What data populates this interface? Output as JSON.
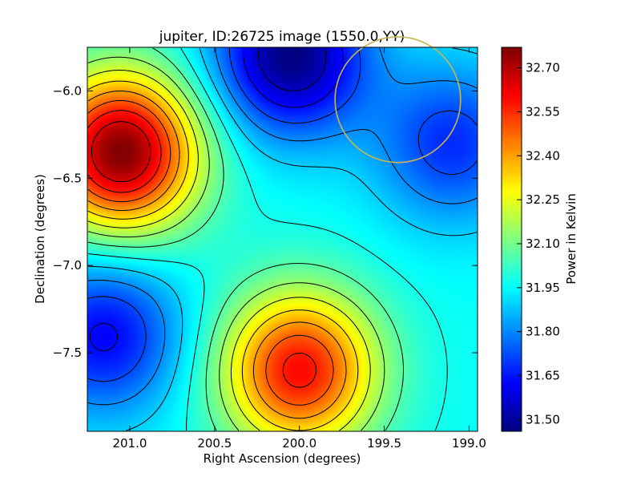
{
  "chart_data": {
    "type": "heatmap",
    "title": "jupiter, ID:26725 image (1550.0,YY)",
    "xlabel": "Right Ascension (degrees)",
    "ylabel": "Declination (degrees)",
    "colorbar_label": "Power in Kelvin",
    "colormap": "jet",
    "contours": true,
    "xlim": [
      201.25,
      198.95
    ],
    "ylim": [
      -7.95,
      -5.75
    ],
    "x_ticks": [
      201.0,
      200.5,
      200.0,
      199.5,
      199.0
    ],
    "x_tick_labels": [
      "201.0",
      "200.5",
      "200.0",
      "199.5",
      "199.0"
    ],
    "y_ticks": [
      -6.0,
      -6.5,
      -7.0,
      -7.5
    ],
    "y_tick_labels": [
      "−6.0",
      "−6.5",
      "−7.0",
      "−7.5"
    ],
    "clim": [
      31.46,
      32.77
    ],
    "colorbar_ticks": [
      31.5,
      31.65,
      31.8,
      31.95,
      32.1,
      32.25,
      32.4,
      32.55,
      32.7
    ],
    "colorbar_tick_labels": [
      "31.50",
      "31.65",
      "31.80",
      "31.95",
      "32.10",
      "32.25",
      "32.40",
      "32.55",
      "32.70"
    ],
    "features": [
      {
        "ra": 201.05,
        "dec": -6.35,
        "value": 32.77,
        "kind": "max"
      },
      {
        "ra": 200.0,
        "dec": -7.6,
        "value": 32.6,
        "kind": "max"
      },
      {
        "ra": 200.05,
        "dec": -5.8,
        "value": 31.46,
        "kind": "min"
      },
      {
        "ra": 201.15,
        "dec": -7.4,
        "value": 31.62,
        "kind": "min"
      },
      {
        "ra": 199.1,
        "dec": -6.3,
        "value": 31.68,
        "kind": "min"
      }
    ],
    "source_circle": {
      "ra": 199.42,
      "dec": -6.05,
      "radius_deg": 0.37,
      "color": "#c8b450"
    }
  }
}
